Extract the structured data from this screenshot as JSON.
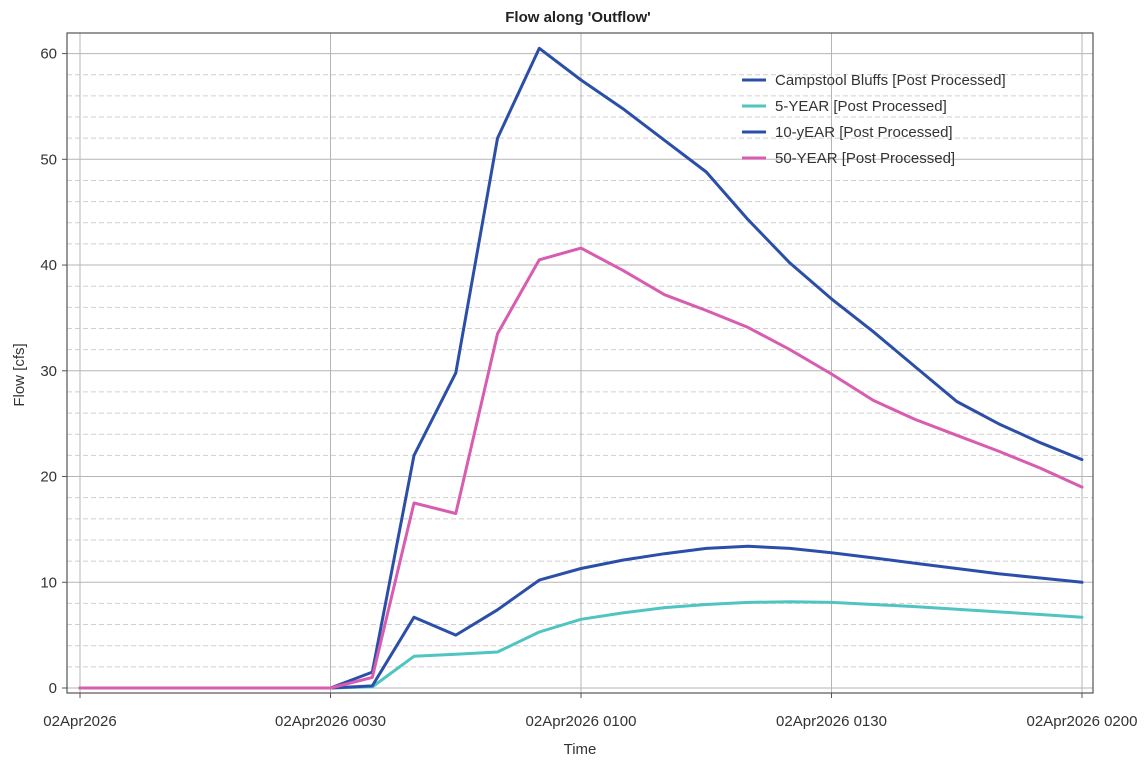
{
  "chart_data": {
    "type": "line",
    "title": "Flow along 'Outflow'",
    "xlabel": "Time",
    "ylabel": "Flow [cfs]",
    "xlim_minutes": [
      0,
      120
    ],
    "ylim": [
      0,
      61
    ],
    "x_ticks": [
      {
        "value": 0,
        "label": "02Apr2026"
      },
      {
        "value": 30,
        "label": "02Apr2026 0030"
      },
      {
        "value": 60,
        "label": "02Apr2026 0100"
      },
      {
        "value": 90,
        "label": "02Apr2026 0130"
      },
      {
        "value": 120,
        "label": "02Apr2026 0200"
      }
    ],
    "y_ticks": [
      0,
      10,
      20,
      30,
      40,
      50,
      60
    ],
    "grid": true,
    "legend_position": "top-right",
    "series": [
      {
        "name": "Campstool Bluffs [Post Processed]",
        "color": "#2b4fa8",
        "x": [
          0,
          30,
          35,
          40,
          45,
          50,
          55,
          60,
          65,
          70,
          75,
          80,
          85,
          90,
          95,
          100,
          105,
          110,
          115,
          120
        ],
        "y": [
          0,
          0,
          1.5,
          22,
          29.8,
          52,
          60.5,
          57.5,
          54.8,
          51.8,
          48.8,
          44.3,
          40.2,
          36.8,
          33.7,
          30.4,
          27.1,
          25.0,
          23.2,
          21.6
        ]
      },
      {
        "name": "5-YEAR [Post Processed]",
        "color": "#4fc4c0",
        "x": [
          0,
          30,
          35,
          40,
          45,
          50,
          55,
          60,
          65,
          70,
          75,
          80,
          85,
          90,
          95,
          100,
          105,
          110,
          115,
          120
        ],
        "y": [
          0,
          0,
          0.1,
          3.0,
          3.2,
          3.4,
          5.3,
          6.5,
          7.1,
          7.6,
          7.9,
          8.1,
          8.15,
          8.1,
          7.9,
          7.7,
          7.45,
          7.2,
          6.95,
          6.7
        ]
      },
      {
        "name": "10-yEAR [Post Processed]",
        "color": "#2b4fa8",
        "x": [
          0,
          30,
          35,
          40,
          45,
          50,
          55,
          60,
          65,
          70,
          75,
          80,
          85,
          90,
          95,
          100,
          105,
          110,
          115,
          120
        ],
        "y": [
          0,
          0,
          0.2,
          6.7,
          5.0,
          7.4,
          10.2,
          11.3,
          12.1,
          12.7,
          13.2,
          13.4,
          13.2,
          12.8,
          12.3,
          11.8,
          11.3,
          10.8,
          10.4,
          10.0
        ]
      },
      {
        "name": "50-YEAR [Post Processed]",
        "color": "#d85cb0",
        "x": [
          0,
          30,
          35,
          40,
          45,
          50,
          55,
          60,
          65,
          70,
          75,
          80,
          85,
          90,
          95,
          100,
          105,
          110,
          115,
          120
        ],
        "y": [
          0,
          0,
          1.0,
          17.5,
          16.5,
          33.5,
          40.5,
          41.6,
          39.5,
          37.2,
          35.7,
          34.1,
          32.0,
          29.7,
          27.2,
          25.4,
          23.9,
          22.4,
          20.8,
          19.0
        ]
      }
    ]
  }
}
